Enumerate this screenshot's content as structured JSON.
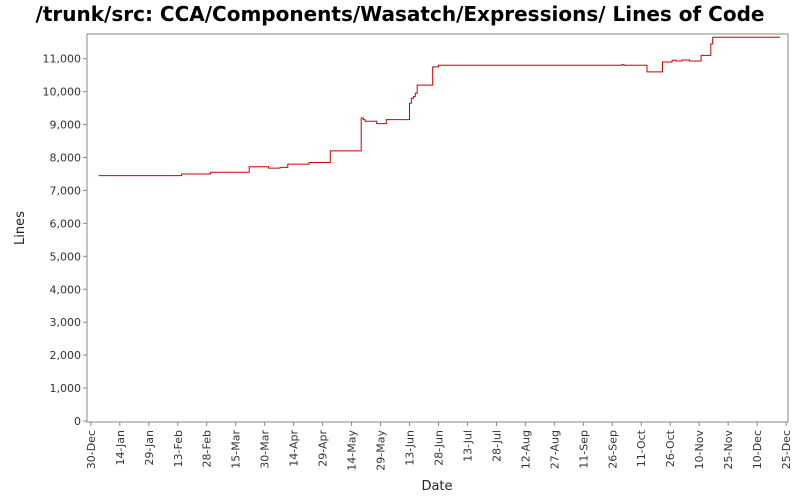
{
  "chart_data": {
    "type": "line",
    "title": "/trunk/src: CCA/Components/Wasatch/Expressions/ Lines of Code",
    "xlabel": "Date",
    "ylabel": "Lines",
    "ylim": [
      0,
      11750
    ],
    "y_ticks": [
      0,
      1000,
      2000,
      3000,
      4000,
      5000,
      6000,
      7000,
      8000,
      9000,
      10000,
      11000
    ],
    "y_tick_labels": [
      "0",
      "1,000",
      "2,000",
      "3,000",
      "4,000",
      "5,000",
      "6,000",
      "7,000",
      "8,000",
      "9,000",
      "10,000",
      "11,000"
    ],
    "x_tick_labels": [
      "30-Dec",
      "14-Jan",
      "29-Jan",
      "13-Feb",
      "28-Feb",
      "15-Mar",
      "30-Mar",
      "14-Apr",
      "29-Apr",
      "14-May",
      "29-May",
      "13-Jun",
      "28-Jun",
      "13-Jul",
      "28-Jul",
      "12-Aug",
      "27-Aug",
      "11-Sep",
      "26-Sep",
      "11-Oct",
      "26-Oct",
      "10-Nov",
      "25-Nov",
      "10-Dec",
      "25-Dec"
    ],
    "x_tick_days": [
      0,
      15,
      30,
      45,
      60,
      75,
      90,
      105,
      120,
      135,
      150,
      165,
      180,
      195,
      210,
      225,
      240,
      255,
      270,
      285,
      300,
      315,
      330,
      345,
      360
    ],
    "xlim_days": [
      -2,
      361
    ],
    "grid": false,
    "step": true,
    "series": [
      {
        "color": "#cc0000",
        "points": [
          [
            4,
            7450
          ],
          [
            47,
            7500
          ],
          [
            62,
            7550
          ],
          [
            82,
            7720
          ],
          [
            92,
            7680
          ],
          [
            98,
            7700
          ],
          [
            102,
            7800
          ],
          [
            113,
            7850
          ],
          [
            124,
            8200
          ],
          [
            140,
            9200
          ],
          [
            141,
            9150
          ],
          [
            142,
            9100
          ],
          [
            148,
            9030
          ],
          [
            153,
            9150
          ],
          [
            165,
            9650
          ],
          [
            166,
            9800
          ],
          [
            167,
            9850
          ],
          [
            168,
            9950
          ],
          [
            169,
            10200
          ],
          [
            177,
            10750
          ],
          [
            180,
            10800
          ],
          [
            275,
            10820
          ],
          [
            276,
            10800
          ],
          [
            288,
            10600
          ],
          [
            296,
            10900
          ],
          [
            301,
            10950
          ],
          [
            303,
            10930
          ],
          [
            306,
            10960
          ],
          [
            310,
            10930
          ],
          [
            316,
            11100
          ],
          [
            321,
            11450
          ],
          [
            322,
            11650
          ],
          [
            357,
            11650
          ]
        ]
      }
    ]
  }
}
